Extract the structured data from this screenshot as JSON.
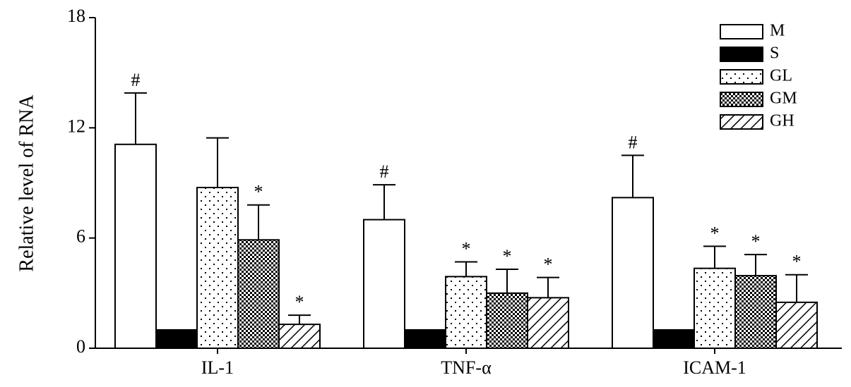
{
  "chart_data": {
    "type": "bar",
    "y_label": "Relative level of RNA",
    "categories": [
      "IL-1",
      "TNF-α",
      "ICAM-1"
    ],
    "ylim": [
      0,
      18
    ],
    "yticks": [
      0,
      6,
      12,
      18
    ],
    "grid": false,
    "legend": "top-right",
    "series": [
      {
        "name": "M",
        "color": "#ffffff",
        "pattern": "none",
        "values": [
          11.1,
          7.0,
          8.2
        ],
        "errors": [
          2.8,
          1.9,
          2.3
        ],
        "annotations": [
          "#",
          "#",
          "#"
        ]
      },
      {
        "name": "S",
        "color": "#000000",
        "pattern": "solid",
        "values": [
          1.0,
          1.0,
          1.0
        ],
        "errors": [
          0,
          0,
          0
        ],
        "annotations": [
          null,
          null,
          null
        ]
      },
      {
        "name": "GL",
        "color": "#ffffff",
        "pattern": "dots",
        "values": [
          8.75,
          3.9,
          4.35
        ],
        "errors": [
          2.7,
          0.8,
          1.2
        ],
        "annotations": [
          null,
          "*",
          "*"
        ]
      },
      {
        "name": "GM",
        "color": "#ffffff",
        "pattern": "checker",
        "values": [
          5.9,
          3.0,
          3.95
        ],
        "errors": [
          1.9,
          1.3,
          1.15
        ],
        "annotations": [
          "*",
          "*",
          "*"
        ]
      },
      {
        "name": "GH",
        "color": "#ffffff",
        "pattern": "hatch",
        "values": [
          1.3,
          2.75,
          2.5
        ],
        "errors": [
          0.5,
          1.1,
          1.5
        ],
        "annotations": [
          "*",
          "*",
          "*"
        ]
      }
    ]
  }
}
